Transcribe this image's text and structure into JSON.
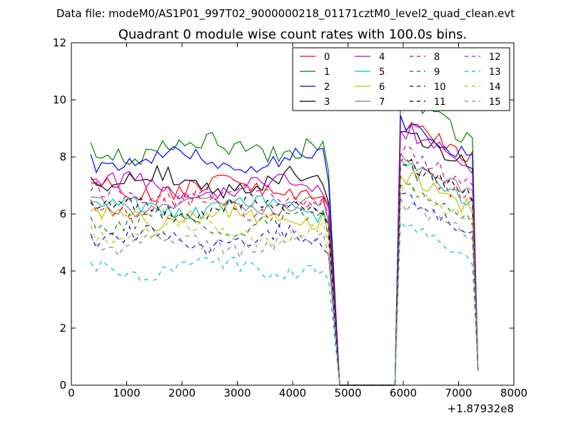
{
  "chart_data": {
    "type": "line",
    "suptitle": "Data file: modeM0/AS1P01_997T02_9000000218_01171cztM0_level2_quad_clean.evt",
    "title": "Quadrant 0 module wise count rates with 100.0s bins.",
    "xlabel": "",
    "ylabel": "",
    "x_offset_label": "+1.87932e8",
    "xlim": [
      0,
      8000
    ],
    "ylim": [
      0,
      12
    ],
    "xticks": [
      0,
      1000,
      2000,
      3000,
      4000,
      5000,
      6000,
      7000,
      8000
    ],
    "xtick_labels": [
      "0",
      "1000",
      "2000",
      "3000",
      "4000",
      "5000",
      "6000",
      "7000",
      "8000"
    ],
    "yticks": [
      0,
      2,
      4,
      6,
      8,
      10,
      12
    ],
    "ytick_labels": [
      "0",
      "2",
      "4",
      "6",
      "8",
      "10",
      "12"
    ],
    "legend": {
      "location": "top-right",
      "columns": 4
    },
    "segments": [
      {
        "x_start": 350,
        "count": 44,
        "step": 100
      },
      {
        "x_start": 4850,
        "count": 10,
        "step": 100
      },
      {
        "x_start": 5850,
        "count": 16,
        "step": 100
      }
    ],
    "series": [
      {
        "name": "0",
        "color": "#ff0000",
        "style": "solid",
        "base": 6.9,
        "post": 8.8,
        "amp": 0.3,
        "noise": 0.3,
        "seed": 1
      },
      {
        "name": "1",
        "color": "#008000",
        "style": "solid",
        "base": 8.3,
        "post": 9.5,
        "amp": 0.25,
        "noise": 0.35,
        "seed": 2
      },
      {
        "name": "2",
        "color": "#0000ff",
        "style": "solid",
        "base": 7.9,
        "post": 8.8,
        "amp": 0.3,
        "noise": 0.25,
        "seed": 3
      },
      {
        "name": "3",
        "color": "#000000",
        "style": "solid",
        "base": 7.1,
        "post": 8.5,
        "amp": 0.3,
        "noise": 0.3,
        "seed": 4
      },
      {
        "name": "4",
        "color": "#bf00bf",
        "style": "solid",
        "base": 7.0,
        "post": 8.6,
        "amp": 0.3,
        "noise": 0.35,
        "seed": 5
      },
      {
        "name": "5",
        "color": "#00bfbf",
        "style": "solid",
        "base": 6.2,
        "post": 7.3,
        "amp": 0.25,
        "noise": 0.3,
        "seed": 6
      },
      {
        "name": "6",
        "color": "#bfbf00",
        "style": "solid",
        "base": 5.9,
        "post": 7.0,
        "amp": 0.25,
        "noise": 0.3,
        "seed": 7
      },
      {
        "name": "7",
        "color": "#808080",
        "style": "solid",
        "base": 6.4,
        "post": 7.5,
        "amp": 0.25,
        "noise": 0.25,
        "seed": 8
      },
      {
        "name": "8",
        "color": "#ff0000",
        "style": "dashed",
        "base": 6.3,
        "post": 7.3,
        "amp": 0.25,
        "noise": 0.3,
        "seed": 9
      },
      {
        "name": "9",
        "color": "#008000",
        "style": "dashed",
        "base": 5.7,
        "post": 6.7,
        "amp": 0.25,
        "noise": 0.3,
        "seed": 10
      },
      {
        "name": "10",
        "color": "#0000ff",
        "style": "dashed",
        "base": 5.1,
        "post": 6.1,
        "amp": 0.25,
        "noise": 0.3,
        "seed": 11
      },
      {
        "name": "11",
        "color": "#000000",
        "style": "dashed",
        "base": 6.2,
        "post": 7.4,
        "amp": 0.25,
        "noise": 0.3,
        "seed": 12
      },
      {
        "name": "12",
        "color": "#bf00bf",
        "style": "dashed",
        "base": 6.6,
        "post": 7.8,
        "amp": 0.25,
        "noise": 0.3,
        "seed": 13
      },
      {
        "name": "13",
        "color": "#00bfbf",
        "style": "dashed",
        "base": 4.1,
        "post": 5.2,
        "amp": 0.25,
        "noise": 0.25,
        "seed": 14
      },
      {
        "name": "14",
        "color": "#bfbf00",
        "style": "dashed",
        "base": 5.4,
        "post": 6.5,
        "amp": 0.25,
        "noise": 0.3,
        "seed": 15
      },
      {
        "name": "15",
        "color": "#808080",
        "style": "dashed",
        "base": 5.0,
        "post": 6.0,
        "amp": 0.25,
        "noise": 0.3,
        "seed": 16
      }
    ]
  }
}
